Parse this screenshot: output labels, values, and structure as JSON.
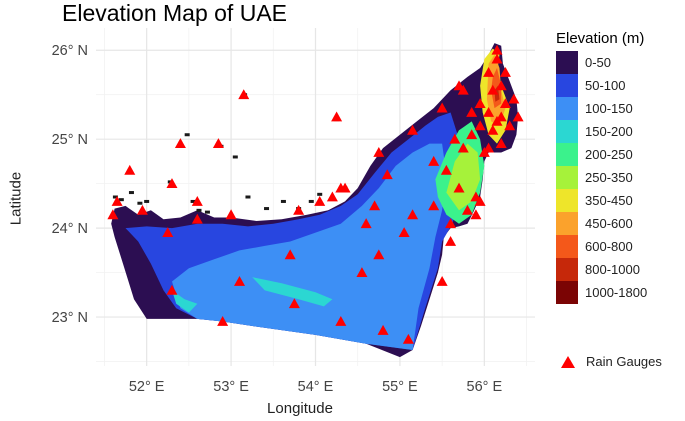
{
  "title": "Elevation Map of UAE",
  "x_axis": {
    "title": "Longitude",
    "range": [
      51.4,
      56.6
    ],
    "ticks": [
      {
        "value": 52,
        "label": "52° E"
      },
      {
        "value": 53,
        "label": "53° E"
      },
      {
        "value": 54,
        "label": "54° E"
      },
      {
        "value": 55,
        "label": "55° E"
      },
      {
        "value": 56,
        "label": "56° E"
      }
    ]
  },
  "y_axis": {
    "title": "Latitude",
    "range": [
      22.45,
      26.25
    ],
    "ticks": [
      {
        "value": 26,
        "label": "26° N"
      },
      {
        "value": 25,
        "label": "25° N"
      },
      {
        "value": 24,
        "label": "24° N"
      },
      {
        "value": 23,
        "label": "23° N"
      }
    ]
  },
  "legend": {
    "title": "Elevation (m)",
    "classes": [
      {
        "label": "0-50",
        "color": "#2c0e52"
      },
      {
        "label": "50-100",
        "color": "#2846e0"
      },
      {
        "label": "100-150",
        "color": "#3d8ff5"
      },
      {
        "label": "150-200",
        "color": "#2bd7d2"
      },
      {
        "label": "200-250",
        "color": "#3bf28c"
      },
      {
        "label": "250-350",
        "color": "#a6f23a"
      },
      {
        "label": "350-450",
        "color": "#eee52a"
      },
      {
        "label": "450-600",
        "color": "#fba22c"
      },
      {
        "label": "600-800",
        "color": "#f4581a"
      },
      {
        "label": "800-1000",
        "color": "#c6280a"
      },
      {
        "label": "1000-1800",
        "color": "#7b0404"
      }
    ]
  },
  "gauge_legend": {
    "label": "Rain Gauges",
    "color": "#ff0000"
  },
  "rain_gauges": [
    [
      51.6,
      24.15
    ],
    [
      51.65,
      24.3
    ],
    [
      51.8,
      24.65
    ],
    [
      51.95,
      24.2
    ],
    [
      52.25,
      23.95
    ],
    [
      52.3,
      24.5
    ],
    [
      52.3,
      23.3
    ],
    [
      52.4,
      24.95
    ],
    [
      52.6,
      24.3
    ],
    [
      52.6,
      24.1
    ],
    [
      52.85,
      24.95
    ],
    [
      52.9,
      22.95
    ],
    [
      53.0,
      24.15
    ],
    [
      53.1,
      23.4
    ],
    [
      53.15,
      25.5
    ],
    [
      53.7,
      23.7
    ],
    [
      53.75,
      23.15
    ],
    [
      53.8,
      24.2
    ],
    [
      54.05,
      24.3
    ],
    [
      54.2,
      24.35
    ],
    [
      54.25,
      25.25
    ],
    [
      54.3,
      22.95
    ],
    [
      54.3,
      24.45
    ],
    [
      54.35,
      24.45
    ],
    [
      54.55,
      23.5
    ],
    [
      54.6,
      24.05
    ],
    [
      54.7,
      24.25
    ],
    [
      54.75,
      23.7
    ],
    [
      54.75,
      24.85
    ],
    [
      54.8,
      22.85
    ],
    [
      54.85,
      24.6
    ],
    [
      55.05,
      23.95
    ],
    [
      55.1,
      22.75
    ],
    [
      55.15,
      24.15
    ],
    [
      55.15,
      25.1
    ],
    [
      55.4,
      24.75
    ],
    [
      55.4,
      24.25
    ],
    [
      55.5,
      23.4
    ],
    [
      55.5,
      25.35
    ],
    [
      55.55,
      24.65
    ],
    [
      55.6,
      24.05
    ],
    [
      55.6,
      23.85
    ],
    [
      55.65,
      25.0
    ],
    [
      55.7,
      24.45
    ],
    [
      55.75,
      24.9
    ],
    [
      55.75,
      25.55
    ],
    [
      55.8,
      24.2
    ],
    [
      55.85,
      25.05
    ],
    [
      55.85,
      25.3
    ],
    [
      55.9,
      24.35
    ],
    [
      55.9,
      24.15
    ],
    [
      55.95,
      25.4
    ],
    [
      55.95,
      25.15
    ],
    [
      56.0,
      24.85
    ],
    [
      56.05,
      25.75
    ],
    [
      56.05,
      25.3
    ],
    [
      56.05,
      24.9
    ],
    [
      56.1,
      25.55
    ],
    [
      56.1,
      25.1
    ],
    [
      56.15,
      26.0
    ],
    [
      56.15,
      25.9
    ],
    [
      56.15,
      25.2
    ],
    [
      56.2,
      25.6
    ],
    [
      56.2,
      25.25
    ],
    [
      56.2,
      24.95
    ],
    [
      56.25,
      25.4
    ],
    [
      56.25,
      25.75
    ],
    [
      56.3,
      25.15
    ],
    [
      56.35,
      25.45
    ],
    [
      56.4,
      25.25
    ],
    [
      55.7,
      25.6
    ],
    [
      55.95,
      24.3
    ]
  ]
}
